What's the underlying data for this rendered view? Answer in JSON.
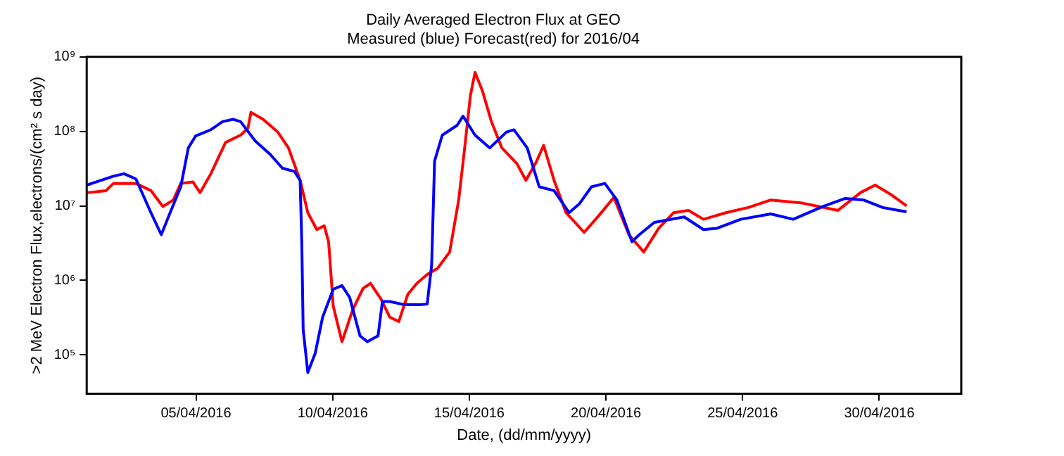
{
  "chart_data": {
    "type": "line",
    "title": "Daily Averaged Electron Flux at GEO",
    "subtitle": "Measured (blue) Forecast(red) for 2016/04",
    "xlabel": "Date, (dd/mm/yyyy)",
    "ylabel": ">2 MeV Electron Flux,electrons/(cm² s day)",
    "log": "y",
    "grid": false,
    "marker": "none",
    "line_style": "solid",
    "xlim": [
      "2016-04-01",
      "2016-05-03"
    ],
    "xticks": [
      {
        "value": "2016-04-05",
        "label": "05/04/2016"
      },
      {
        "value": "2016-04-10",
        "label": "10/04/2016"
      },
      {
        "value": "2016-04-15",
        "label": "15/04/2016"
      },
      {
        "value": "2016-04-20",
        "label": "20/04/2016"
      },
      {
        "value": "2016-04-25",
        "label": "25/04/2016"
      },
      {
        "value": "2016-04-30",
        "label": "30/04/2016"
      }
    ],
    "ylim": [
      30000,
      1000000000
    ],
    "yticks": [
      {
        "value": 100000,
        "label": "10⁵"
      },
      {
        "value": 1000000,
        "label": "10⁶"
      },
      {
        "value": 10000000,
        "label": "10⁷"
      },
      {
        "value": 100000000,
        "label": "10⁸"
      },
      {
        "value": 1000000000,
        "label": "10⁹"
      }
    ],
    "series": [
      {
        "color": "#0000ff",
        "x": [
          "2016-04-01T00:00",
          "2016-04-01T23:30",
          "2016-04-02T08:50",
          "2016-04-02T19:10",
          "2016-04-03T08:25",
          "2016-04-03T17:30",
          "2016-04-04T00:15",
          "2016-04-04T10:35",
          "2016-04-04T17:15",
          "2016-04-04T23:45",
          "2016-04-05T13:00",
          "2016-04-05T23:15",
          "2016-04-06T08:40",
          "2016-04-06T15:10",
          "2016-04-07T04:05",
          "2016-04-07T17:15",
          "2016-04-08T03:50",
          "2016-04-08T14:25",
          "2016-04-08T19:25",
          "2016-04-08T20:55",
          "2016-04-08T22:05",
          "2016-04-09T02:10",
          "2016-04-09T08:40",
          "2016-04-09T15:10",
          "2016-04-10T00:30",
          "2016-04-10T08:10",
          "2016-04-10T14:55",
          "2016-04-11T00:00",
          "2016-04-11T06:30",
          "2016-04-11T15:50",
          "2016-04-11T19:40",
          "2016-04-12T02:10",
          "2016-04-12T15:20",
          "2016-04-13T04:35",
          "2016-04-13T11:00",
          "2016-04-13T14:55",
          "2016-04-13T17:30",
          "2016-04-14T00:15",
          "2016-04-14T13:10",
          "2016-04-14T18:30",
          "2016-04-15T05:00",
          "2016-04-15T18:00",
          "2016-04-16T08:40",
          "2016-04-16T15:10",
          "2016-04-17T02:50",
          "2016-04-17T13:25",
          "2016-04-18T02:25",
          "2016-04-18T15:35",
          "2016-04-19T00:45",
          "2016-04-19T11:15",
          "2016-04-19T23:00",
          "2016-04-20T09:35",
          "2016-04-20T22:50",
          "2016-04-21T05:15",
          "2016-04-21T18:30",
          "2016-04-22T20:40",
          "2016-04-23T13:40",
          "2016-04-24T01:25",
          "2016-04-24T22:20",
          "2016-04-26T00:45",
          "2016-04-26T20:25",
          "2016-04-27T22:35",
          "2016-04-28T18:15",
          "2016-04-29T10:05",
          "2016-04-30T03:05",
          "2016-05-01T00:00"
        ],
        "values": [
          19000000.0,
          25000000.0,
          27000000.0,
          23000000.0,
          8100000.0,
          4100000.0,
          7400000.0,
          18000000.0,
          60000000.0,
          87000000.0,
          105000000.0,
          135000000.0,
          145000000.0,
          135000000.0,
          74000000.0,
          49000000.0,
          32000000.0,
          29000000.0,
          22000000.0,
          3000000.0,
          220000.0,
          58000.0,
          105000.0,
          320000.0,
          760000.0,
          850000.0,
          590000.0,
          180000.0,
          150000.0,
          180000.0,
          520000.0,
          520000.0,
          470000.0,
          470000.0,
          480000.0,
          1600000.0,
          40000000.0,
          89000000.0,
          120000000.0,
          160000000.0,
          89000000.0,
          60000000.0,
          98000000.0,
          105000000.0,
          60000000.0,
          18000000.0,
          16000000.0,
          8100000.0,
          10700000.0,
          18000000.0,
          20000000.0,
          12000000.0,
          3300000.0,
          4100000.0,
          6000000.0,
          7100000.0,
          4800000.0,
          5000000.0,
          6600000.0,
          7800000.0,
          6600000.0,
          9800000.0,
          12600000.0,
          12000000.0,
          9500000.0,
          8300000.0
        ]
      },
      {
        "color": "#ff0000",
        "x": [
          "2016-04-01T00:00",
          "2016-04-01T17:00",
          "2016-04-01T23:30",
          "2016-04-02T19:10",
          "2016-04-03T08:25",
          "2016-04-03T18:55",
          "2016-04-04T04:05",
          "2016-04-04T10:35",
          "2016-04-04T21:10",
          "2016-04-05T03:35",
          "2016-04-05T13:00",
          "2016-04-06T01:55",
          "2016-04-06T15:10",
          "2016-04-06T21:35",
          "2016-04-07T00:15",
          "2016-04-07T10:50",
          "2016-04-07T23:45",
          "2016-04-08T09:10",
          "2016-04-08T19:25",
          "2016-04-09T02:10",
          "2016-04-09T10:05",
          "2016-04-09T16:35",
          "2016-04-09T20:25",
          "2016-04-09T21:35",
          "2016-04-10T00:30",
          "2016-04-10T08:10",
          "2016-04-10T17:30",
          "2016-04-11T02:40",
          "2016-04-11T09:10",
          "2016-04-11T18:30",
          "2016-04-12T02:10",
          "2016-04-12T10:05",
          "2016-04-12T18:00",
          "2016-04-13T01:55",
          "2016-04-13T11:00",
          "2016-04-13T20:10",
          "2016-04-14T06:45",
          "2016-04-14T14:40",
          "2016-04-14T19:55",
          "2016-04-15T00:55",
          "2016-04-15T05:00",
          "2016-04-15T11:30",
          "2016-04-15T19:25",
          "2016-04-16T04:35",
          "2016-04-16T17:45",
          "2016-04-17T01:40",
          "2016-04-17T10:50",
          "2016-04-17T17:15",
          "2016-04-18T02:25",
          "2016-04-18T12:55",
          "2016-04-19T04:50",
          "2016-04-19T17:45",
          "2016-04-20T06:55",
          "2016-04-20T20:10",
          "2016-04-21T09:10",
          "2016-04-21T22:20",
          "2016-04-22T11:30",
          "2016-04-23T00:30",
          "2016-04-23T13:40",
          "2016-04-24T09:20",
          "2016-04-25T05:00",
          "2016-04-26T00:45",
          "2016-04-27T02:55",
          "2016-04-28T11:45",
          "2016-04-29T07:25",
          "2016-04-29T20:25",
          "2016-04-30T10:50",
          "2016-05-01T00:00"
        ],
        "values": [
          15000000.0,
          16000000.0,
          20000000.0,
          20000000.0,
          16000000.0,
          9800000.0,
          12000000.0,
          20000000.0,
          21000000.0,
          15000000.0,
          27000000.0,
          71000000.0,
          89000000.0,
          110000000.0,
          180000000.0,
          145000000.0,
          98000000.0,
          60000000.0,
          22000000.0,
          8100000.0,
          4800000.0,
          5400000.0,
          3300000.0,
          1900000.0,
          450000.0,
          150000.0,
          400000.0,
          780000.0,
          910000.0,
          560000.0,
          320000.0,
          280000.0,
          650000.0,
          910000.0,
          1200000.0,
          1450000.0,
          2400000.0,
          12000000.0,
          60000000.0,
          300000000.0,
          620000000.0,
          350000000.0,
          135000000.0,
          60000000.0,
          37000000.0,
          22000000.0,
          39000000.0,
          65000000.0,
          22000000.0,
          8100000.0,
          4400000.0,
          7400000.0,
          13000000.0,
          4100000.0,
          2400000.0,
          5000000.0,
          8100000.0,
          8700000.0,
          6600000.0,
          8100000.0,
          9500000.0,
          12000000.0,
          11000000.0,
          8700000.0,
          15000000.0,
          19000000.0,
          14000000.0,
          10000000.0
        ]
      }
    ]
  }
}
